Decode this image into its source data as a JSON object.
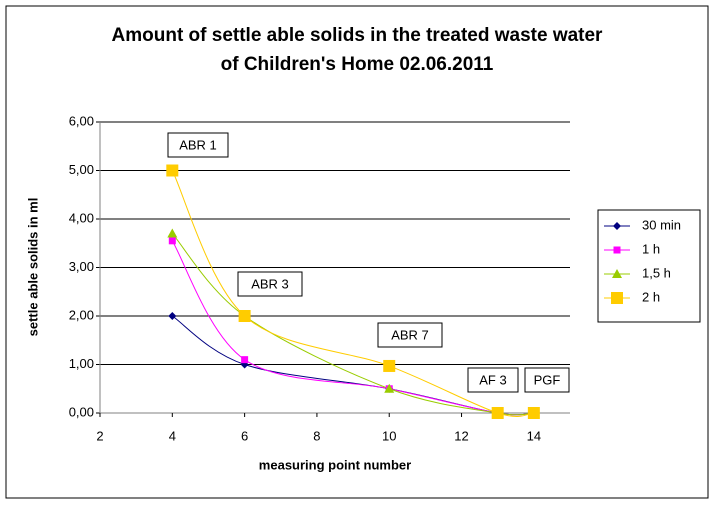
{
  "chart_data": {
    "type": "line",
    "title": [
      "Amount of settle able solids in the treated waste water",
      "of Children's Home 02.06.2011"
    ],
    "x_label": "measuring point number",
    "y_label": "settle able solids in ml",
    "x": [
      4,
      6,
      10,
      13,
      14
    ],
    "series": [
      {
        "name": "30 min",
        "color": "#000080",
        "marker": "diamond",
        "values": [
          2.0,
          1.0,
          0.5,
          0,
          0
        ]
      },
      {
        "name": "1 h",
        "color": "#ff00ff",
        "marker": "square",
        "values": [
          3.55,
          1.1,
          0.5,
          0,
          0
        ]
      },
      {
        "name": "1,5 h",
        "color": "#99cc00",
        "marker": "triangle",
        "values": [
          3.7,
          2.0,
          0.5,
          0,
          0
        ]
      },
      {
        "name": "2 h",
        "color": "#ffcc00",
        "marker": "bigsquare",
        "values": [
          5.0,
          2.0,
          0.97,
          0,
          0
        ]
      }
    ],
    "annotations": [
      "ABR 1",
      "ABR 3",
      "ABR 7",
      "AF 3",
      "PGF"
    ],
    "xlim": [
      2,
      15
    ],
    "xticks": [
      2,
      4,
      6,
      8,
      10,
      12,
      14
    ],
    "ylim": [
      0,
      6
    ],
    "yticks": [
      {
        "value": 0,
        "label": "0,00"
      },
      {
        "value": 1,
        "label": "1,00"
      },
      {
        "value": 2,
        "label": "2,00"
      },
      {
        "value": 3,
        "label": "3,00"
      },
      {
        "value": 4,
        "label": "4,00"
      },
      {
        "value": 5,
        "label": "5,00"
      },
      {
        "value": 6,
        "label": "6,00"
      }
    ],
    "grid": true,
    "legend": "right"
  }
}
